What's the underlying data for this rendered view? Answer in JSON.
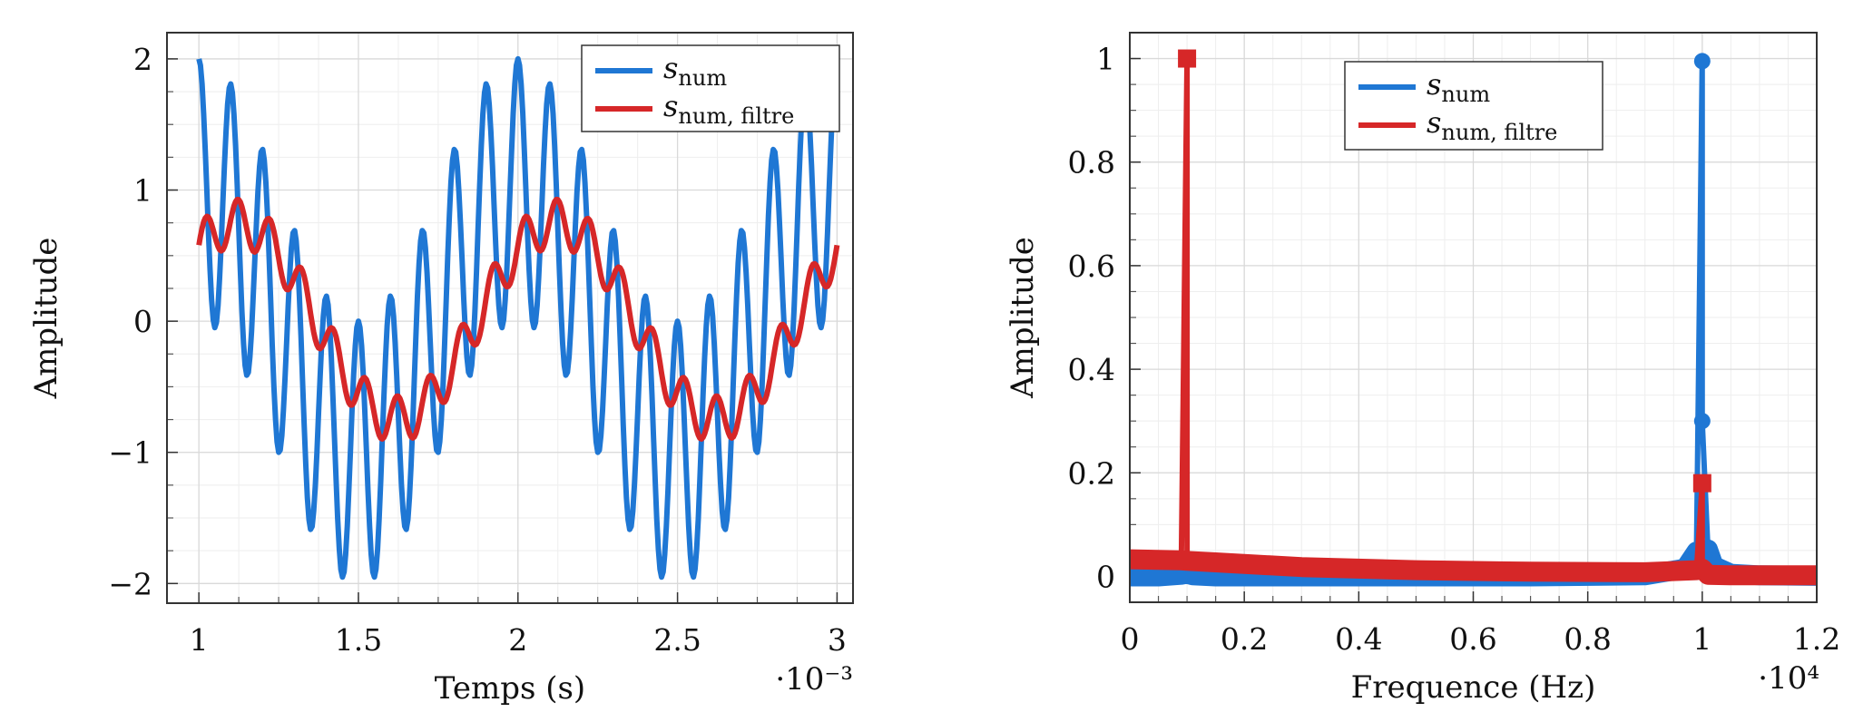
{
  "chart_data": [
    {
      "type": "line",
      "title": "",
      "xlabel": "Temps (s)",
      "ylabel": "Amplitude",
      "x_multiplier": "·10⁻³",
      "xlim": [
        0.9,
        3.05
      ],
      "ylim": [
        -2.15,
        2.2
      ],
      "xticks": [
        1,
        1.5,
        2,
        2.5,
        3
      ],
      "xtick_labels": [
        "1",
        "1.5",
        "2",
        "2.5",
        "3"
      ],
      "yticks": [
        -2,
        -1,
        0,
        1,
        2
      ],
      "ytick_labels": [
        "−2",
        "−1",
        "0",
        "1",
        "2"
      ],
      "grid": true,
      "legend_position": "top-right",
      "x_range": [
        1,
        3
      ],
      "series": [
        {
          "name": "s",
          "subscript": "num",
          "color": "#1f77d4",
          "components": [
            {
              "freq_per_ms": 1,
              "amp": 1,
              "phase": 0
            },
            {
              "freq_per_ms": 10,
              "amp": 1,
              "phase": 0
            }
          ]
        },
        {
          "name": "s",
          "subscript": "num, filtre",
          "color": "#d62728",
          "components": [
            {
              "freq_per_ms": 1,
              "amp": 0.75,
              "phase": -0.75
            },
            {
              "freq_per_ms": 10,
              "amp": 0.18,
              "phase": -1.4
            }
          ]
        }
      ]
    },
    {
      "type": "line",
      "title": "",
      "xlabel": "Frequence (Hz)",
      "ylabel": "Amplitude",
      "x_multiplier": "·10⁴",
      "xlim": [
        0,
        1.2
      ],
      "ylim": [
        -0.05,
        1.05
      ],
      "xticks": [
        0,
        0.2,
        0.4,
        0.6,
        0.8,
        1,
        1.2
      ],
      "xtick_labels": [
        "0",
        "0.2",
        "0.4",
        "0.6",
        "0.8",
        "1",
        "1.2"
      ],
      "yticks": [
        0,
        0.2,
        0.4,
        0.6,
        0.8,
        1
      ],
      "ytick_labels": [
        "0",
        "0.2",
        "0.4",
        "0.6",
        "0.8",
        "1"
      ],
      "grid": true,
      "legend_position": "top-center",
      "series": [
        {
          "name": "s",
          "subscript": "num",
          "color": "#1f77d4",
          "marker": "circle",
          "points": [
            [
              0,
              0
            ],
            [
              0.05,
              0
            ],
            [
              0.09,
              0.003
            ],
            [
              0.1,
              0.005
            ],
            [
              0.11,
              0.002
            ],
            [
              0.15,
              0
            ],
            [
              0.3,
              0
            ],
            [
              0.5,
              0
            ],
            [
              0.7,
              0
            ],
            [
              0.9,
              0.002
            ],
            [
              0.97,
              0.015
            ],
            [
              0.99,
              0.048
            ],
            [
              1.0,
              0.995
            ],
            [
              1.0,
              0.3
            ],
            [
              1.01,
              0.052
            ],
            [
              1.02,
              0.02
            ],
            [
              1.05,
              0.005
            ],
            [
              1.1,
              0.002
            ],
            [
              1.2,
              0.001
            ]
          ]
        },
        {
          "name": "s",
          "subscript": "num, filtre",
          "color": "#d62728",
          "marker": "square",
          "points": [
            [
              0,
              0.033
            ],
            [
              0.05,
              0.032
            ],
            [
              0.09,
              0.031
            ],
            [
              0.1,
              1.0
            ],
            [
              0.1,
              0.03
            ],
            [
              0.15,
              0.027
            ],
            [
              0.3,
              0.018
            ],
            [
              0.5,
              0.012
            ],
            [
              0.7,
              0.009
            ],
            [
              0.9,
              0.008
            ],
            [
              0.99,
              0.012
            ],
            [
              1.0,
              0.18
            ],
            [
              1.0,
              0.015
            ],
            [
              1.01,
              0.003
            ],
            [
              1.05,
              0.002
            ],
            [
              1.2,
              0.002
            ]
          ]
        }
      ]
    }
  ]
}
